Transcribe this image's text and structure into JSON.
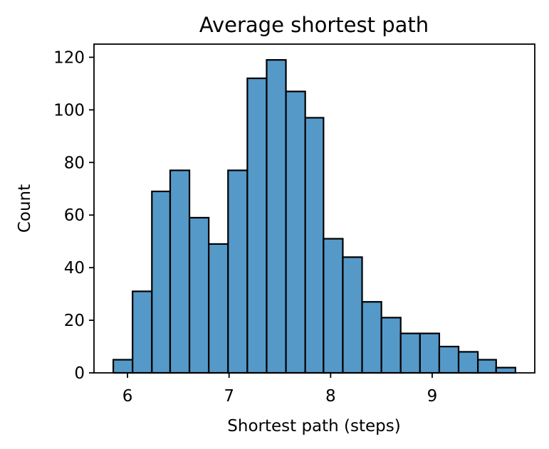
{
  "chart_data": {
    "type": "bar",
    "title": "Average shortest path",
    "xlabel": "Shortest path (steps)",
    "ylabel": "Count",
    "bins": [
      {
        "x0": 5.86,
        "x1": 6.05,
        "count": 5
      },
      {
        "x0": 6.05,
        "x1": 6.24,
        "count": 31
      },
      {
        "x0": 6.24,
        "x1": 6.42,
        "count": 69
      },
      {
        "x0": 6.42,
        "x1": 6.61,
        "count": 77
      },
      {
        "x0": 6.61,
        "x1": 6.8,
        "count": 59
      },
      {
        "x0": 6.8,
        "x1": 6.99,
        "count": 49
      },
      {
        "x0": 6.99,
        "x1": 7.18,
        "count": 77
      },
      {
        "x0": 7.18,
        "x1": 7.37,
        "count": 112
      },
      {
        "x0": 7.37,
        "x1": 7.56,
        "count": 119
      },
      {
        "x0": 7.56,
        "x1": 7.75,
        "count": 107
      },
      {
        "x0": 7.75,
        "x1": 7.93,
        "count": 97
      },
      {
        "x0": 7.93,
        "x1": 8.12,
        "count": 51
      },
      {
        "x0": 8.12,
        "x1": 8.31,
        "count": 44
      },
      {
        "x0": 8.31,
        "x1": 8.5,
        "count": 27
      },
      {
        "x0": 8.5,
        "x1": 8.69,
        "count": 21
      },
      {
        "x0": 8.69,
        "x1": 8.88,
        "count": 15
      },
      {
        "x0": 8.88,
        "x1": 9.07,
        "count": 15
      },
      {
        "x0": 9.07,
        "x1": 9.26,
        "count": 10
      },
      {
        "x0": 9.26,
        "x1": 9.45,
        "count": 8
      },
      {
        "x0": 9.45,
        "x1": 9.63,
        "count": 5
      },
      {
        "x0": 9.63,
        "x1": 9.82,
        "count": 2
      }
    ],
    "xlim": [
      5.67,
      10.01
    ],
    "ylim": [
      0,
      125
    ],
    "xticks": [
      6,
      7,
      8,
      9
    ],
    "yticks": [
      0,
      20,
      40,
      60,
      80,
      100,
      120
    ],
    "bar_color": "#5599c8",
    "edge_color": "#000000",
    "grid": false,
    "legend": false
  }
}
